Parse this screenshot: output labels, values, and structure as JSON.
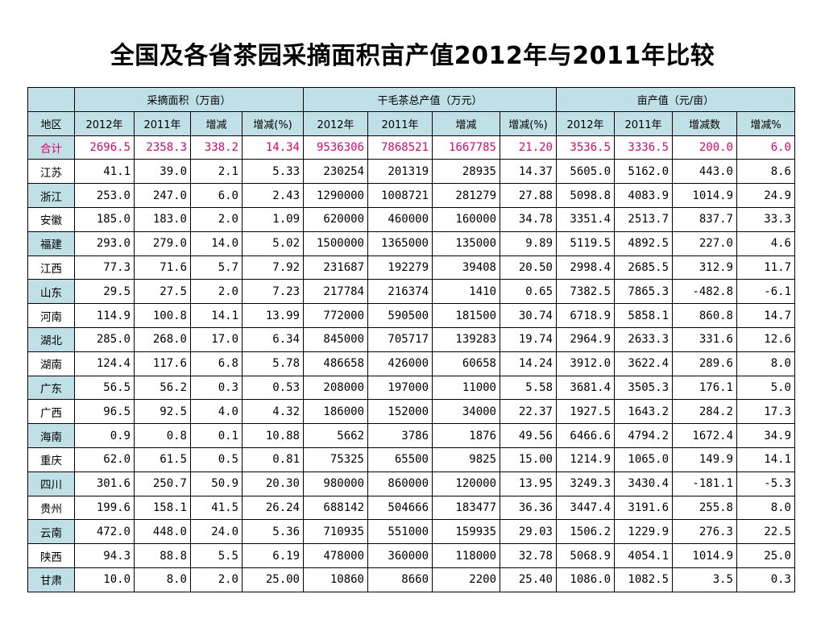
{
  "title": "全国及各省茶园采摘面积亩产值2012年与2011年比较",
  "groups": {
    "corner": "",
    "area": "采摘面积（万亩）",
    "output": "干毛茶总产值（万元）",
    "yield": "亩产值（元/亩）"
  },
  "headers": [
    "地区",
    "2012年",
    "2011年",
    "增减",
    "增减(%)",
    "2012年",
    "2011年",
    "增减",
    "增减(%)",
    "2012年",
    "2011年",
    "增减数",
    "增减%"
  ],
  "rows": [
    [
      "合计",
      "2696.5",
      "2358.3",
      "338.2",
      "14.34",
      "9536306",
      "7868521",
      "1667785",
      "21.20",
      "3536.5",
      "3336.5",
      "200.0",
      "6.0"
    ],
    [
      "江苏",
      "41.1",
      "39.0",
      "2.1",
      "5.33",
      "230254",
      "201319",
      "28935",
      "14.37",
      "5605.0",
      "5162.0",
      "443.0",
      "8.6"
    ],
    [
      "浙江",
      "253.0",
      "247.0",
      "6.0",
      "2.43",
      "1290000",
      "1008721",
      "281279",
      "27.88",
      "5098.8",
      "4083.9",
      "1014.9",
      "24.9"
    ],
    [
      "安徽",
      "185.0",
      "183.0",
      "2.0",
      "1.09",
      "620000",
      "460000",
      "160000",
      "34.78",
      "3351.4",
      "2513.7",
      "837.7",
      "33.3"
    ],
    [
      "福建",
      "293.0",
      "279.0",
      "14.0",
      "5.02",
      "1500000",
      "1365000",
      "135000",
      "9.89",
      "5119.5",
      "4892.5",
      "227.0",
      "4.6"
    ],
    [
      "江西",
      "77.3",
      "71.6",
      "5.7",
      "7.92",
      "231687",
      "192279",
      "39408",
      "20.50",
      "2998.4",
      "2685.5",
      "312.9",
      "11.7"
    ],
    [
      "山东",
      "29.5",
      "27.5",
      "2.0",
      "7.23",
      "217784",
      "216374",
      "1410",
      "0.65",
      "7382.5",
      "7865.3",
      "-482.8",
      "-6.1"
    ],
    [
      "河南",
      "114.9",
      "100.8",
      "14.1",
      "13.99",
      "772000",
      "590500",
      "181500",
      "30.74",
      "6718.9",
      "5858.1",
      "860.8",
      "14.7"
    ],
    [
      "湖北",
      "285.0",
      "268.0",
      "17.0",
      "6.34",
      "845000",
      "705717",
      "139283",
      "19.74",
      "2964.9",
      "2633.3",
      "331.6",
      "12.6"
    ],
    [
      "湖南",
      "124.4",
      "117.6",
      "6.8",
      "5.78",
      "486658",
      "426000",
      "60658",
      "14.24",
      "3912.0",
      "3622.4",
      "289.6",
      "8.0"
    ],
    [
      "广东",
      "56.5",
      "56.2",
      "0.3",
      "0.53",
      "208000",
      "197000",
      "11000",
      "5.58",
      "3681.4",
      "3505.3",
      "176.1",
      "5.0"
    ],
    [
      "广西",
      "96.5",
      "92.5",
      "4.0",
      "4.32",
      "186000",
      "152000",
      "34000",
      "22.37",
      "1927.5",
      "1643.2",
      "284.2",
      "17.3"
    ],
    [
      "海南",
      "0.9",
      "0.8",
      "0.1",
      "10.88",
      "5662",
      "3786",
      "1876",
      "49.56",
      "6466.6",
      "4794.2",
      "1672.4",
      "34.9"
    ],
    [
      "重庆",
      "62.0",
      "61.5",
      "0.5",
      "0.81",
      "75325",
      "65500",
      "9825",
      "15.00",
      "1214.9",
      "1065.0",
      "149.9",
      "14.1"
    ],
    [
      "四川",
      "301.6",
      "250.7",
      "50.9",
      "20.30",
      "980000",
      "860000",
      "120000",
      "13.95",
      "3249.3",
      "3430.4",
      "-181.1",
      "-5.3"
    ],
    [
      "贵州",
      "199.6",
      "158.1",
      "41.5",
      "26.24",
      "688142",
      "504666",
      "183477",
      "36.36",
      "3447.4",
      "3191.6",
      "255.8",
      "8.0"
    ],
    [
      "云南",
      "472.0",
      "448.0",
      "24.0",
      "5.36",
      "710935",
      "551000",
      "159935",
      "29.03",
      "1506.2",
      "1229.9",
      "276.3",
      "22.5"
    ],
    [
      "陕西",
      "94.3",
      "88.8",
      "5.5",
      "6.19",
      "478000",
      "360000",
      "118000",
      "32.78",
      "5068.9",
      "4054.1",
      "1014.9",
      "25.0"
    ],
    [
      "甘肃",
      "10.0",
      "8.0",
      "2.0",
      "25.00",
      "10860",
      "8660",
      "2200",
      "25.40",
      "1086.0",
      "1082.5",
      "3.5",
      "0.3"
    ]
  ],
  "colors": {
    "header_bg": "#bfe0e6",
    "total_text": "#e8006c"
  }
}
